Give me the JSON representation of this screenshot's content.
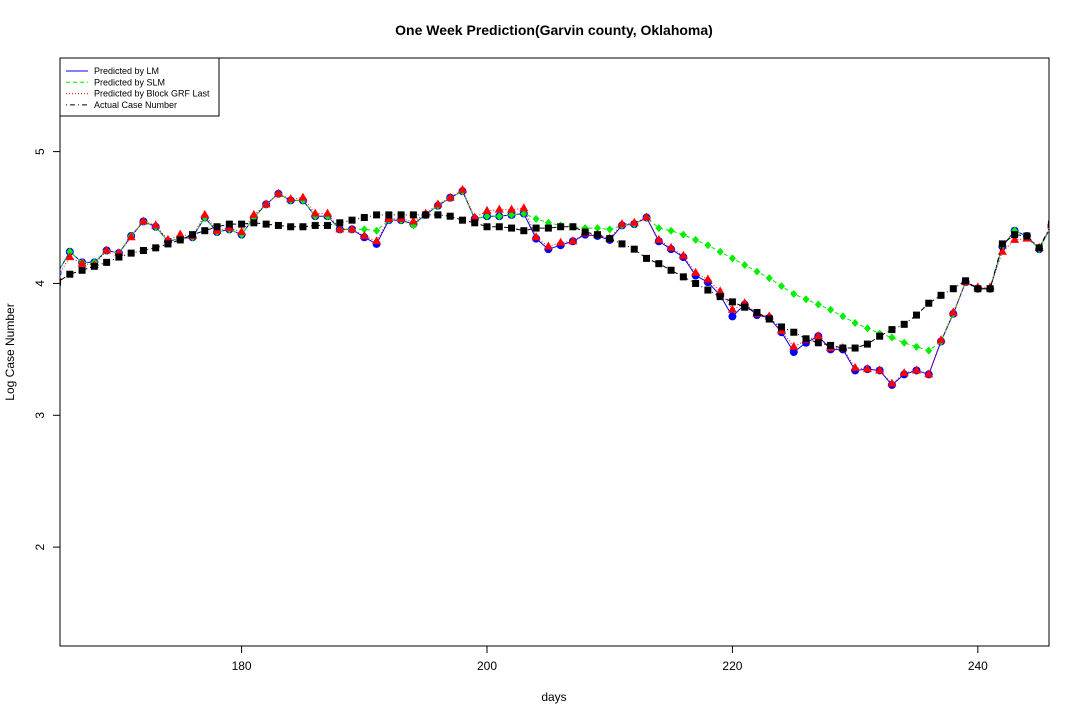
{
  "chart_data": {
    "type": "line",
    "title": "One Week Prediction(Garvin county, Oklahoma)",
    "xlabel": "days",
    "ylabel": "Log Case Number",
    "xlim": [
      165.2,
      245.8
    ],
    "ylim": [
      1.25,
      5.71
    ],
    "xticks": [
      180,
      200,
      220,
      240
    ],
    "yticks": [
      2,
      3,
      4,
      5
    ],
    "legend": "top-left",
    "x": [
      165,
      166,
      167,
      168,
      169,
      170,
      171,
      172,
      173,
      174,
      175,
      176,
      177,
      178,
      179,
      180,
      181,
      182,
      183,
      184,
      185,
      186,
      187,
      188,
      189,
      190,
      191,
      192,
      193,
      194,
      195,
      196,
      197,
      198,
      199,
      200,
      201,
      202,
      203,
      204,
      205,
      206,
      207,
      208,
      209,
      210,
      211,
      212,
      213,
      214,
      215,
      216,
      217,
      218,
      219,
      220,
      221,
      222,
      223,
      224,
      225,
      226,
      227,
      228,
      229,
      230,
      231,
      232,
      233,
      234,
      235,
      236,
      237,
      238,
      239,
      240,
      241,
      242,
      243,
      244,
      245,
      246
    ],
    "series": [
      {
        "name": "Predicted by LM",
        "color": "#0000ff",
        "linestyle": "solid",
        "marker": "circle",
        "values": [
          4.08,
          4.24,
          4.16,
          4.16,
          4.25,
          4.23,
          4.36,
          4.47,
          4.43,
          4.32,
          4.34,
          4.35,
          4.5,
          4.39,
          4.41,
          4.37,
          4.5,
          4.6,
          4.68,
          4.63,
          4.63,
          4.51,
          4.51,
          4.41,
          4.41,
          4.35,
          4.3,
          4.48,
          4.48,
          4.45,
          4.52,
          4.59,
          4.65,
          4.7,
          4.49,
          4.51,
          4.51,
          4.52,
          4.53,
          4.34,
          4.26,
          4.29,
          4.32,
          4.37,
          4.36,
          4.33,
          4.44,
          4.45,
          4.5,
          4.32,
          4.26,
          4.2,
          4.06,
          4.01,
          3.91,
          3.75,
          3.84,
          3.76,
          3.74,
          3.63,
          3.48,
          3.55,
          3.6,
          3.5,
          3.5,
          3.34,
          3.35,
          3.34,
          3.23,
          3.31,
          3.34,
          3.31,
          3.56,
          3.77,
          4.01,
          3.96,
          3.96,
          4.28,
          4.4,
          4.36,
          4.26,
          4.44
        ]
      },
      {
        "name": "Predicted by SLM",
        "color": "#00ee00",
        "linestyle": "dashed",
        "marker": "diamond",
        "values": [
          4.08,
          4.24,
          4.16,
          4.16,
          4.25,
          4.23,
          4.36,
          4.47,
          4.43,
          4.32,
          4.34,
          4.35,
          4.5,
          4.39,
          4.41,
          4.37,
          4.5,
          4.6,
          4.68,
          4.63,
          4.63,
          4.51,
          4.51,
          4.41,
          4.41,
          4.41,
          4.4,
          4.48,
          4.48,
          4.44,
          4.52,
          4.59,
          4.65,
          4.7,
          4.49,
          4.51,
          4.51,
          4.52,
          4.53,
          4.49,
          4.46,
          4.44,
          4.43,
          4.42,
          4.42,
          4.41,
          4.44,
          4.45,
          4.5,
          4.42,
          4.4,
          4.37,
          4.33,
          4.29,
          4.24,
          4.19,
          4.14,
          4.09,
          4.04,
          3.98,
          3.92,
          3.88,
          3.84,
          3.8,
          3.75,
          3.7,
          3.66,
          3.62,
          3.59,
          3.55,
          3.52,
          3.49,
          3.56,
          3.77,
          4.01,
          3.96,
          3.96,
          4.28,
          4.4,
          4.36,
          4.26,
          4.44
        ]
      },
      {
        "name": "Predicted by Block GRF Last",
        "color": "#ff0000",
        "linestyle": "dotted",
        "marker": "triangle",
        "values": [
          4.05,
          4.2,
          4.15,
          4.14,
          4.25,
          4.23,
          4.35,
          4.47,
          4.44,
          4.33,
          4.37,
          4.36,
          4.52,
          4.4,
          4.42,
          4.39,
          4.52,
          4.6,
          4.68,
          4.64,
          4.65,
          4.53,
          4.53,
          4.41,
          4.41,
          4.36,
          4.32,
          4.49,
          4.49,
          4.47,
          4.53,
          4.6,
          4.65,
          4.71,
          4.5,
          4.55,
          4.56,
          4.56,
          4.57,
          4.35,
          4.28,
          4.31,
          4.32,
          4.38,
          4.37,
          4.34,
          4.45,
          4.46,
          4.5,
          4.33,
          4.27,
          4.21,
          4.08,
          4.03,
          3.94,
          3.8,
          3.85,
          3.77,
          3.75,
          3.64,
          3.52,
          3.57,
          3.6,
          3.51,
          3.51,
          3.36,
          3.35,
          3.34,
          3.24,
          3.32,
          3.34,
          3.31,
          3.57,
          3.78,
          4.01,
          3.97,
          3.97,
          4.24,
          4.33,
          4.34,
          4.27,
          4.44
        ]
      },
      {
        "name": "Actual Case Number",
        "color": "#000000",
        "linestyle": "dotdash",
        "marker": "square",
        "values": [
          4.01,
          4.07,
          4.1,
          4.13,
          4.16,
          4.2,
          4.23,
          4.25,
          4.27,
          4.3,
          4.33,
          4.37,
          4.4,
          4.43,
          4.45,
          4.45,
          4.46,
          4.45,
          4.44,
          4.43,
          4.43,
          4.44,
          4.44,
          4.46,
          4.48,
          4.5,
          4.52,
          4.52,
          4.52,
          4.52,
          4.52,
          4.52,
          4.51,
          4.48,
          4.46,
          4.43,
          4.43,
          4.42,
          4.4,
          4.42,
          4.42,
          4.43,
          4.43,
          4.39,
          4.37,
          4.34,
          4.3,
          4.26,
          4.19,
          4.15,
          4.1,
          4.05,
          4.0,
          3.95,
          3.9,
          3.86,
          3.82,
          3.78,
          3.73,
          3.67,
          3.63,
          3.58,
          3.55,
          3.53,
          3.51,
          3.51,
          3.54,
          3.6,
          3.65,
          3.69,
          3.76,
          3.85,
          3.91,
          3.96,
          4.02,
          3.96,
          3.96,
          4.3,
          4.37,
          4.36,
          4.27,
          4.45
        ]
      }
    ]
  }
}
